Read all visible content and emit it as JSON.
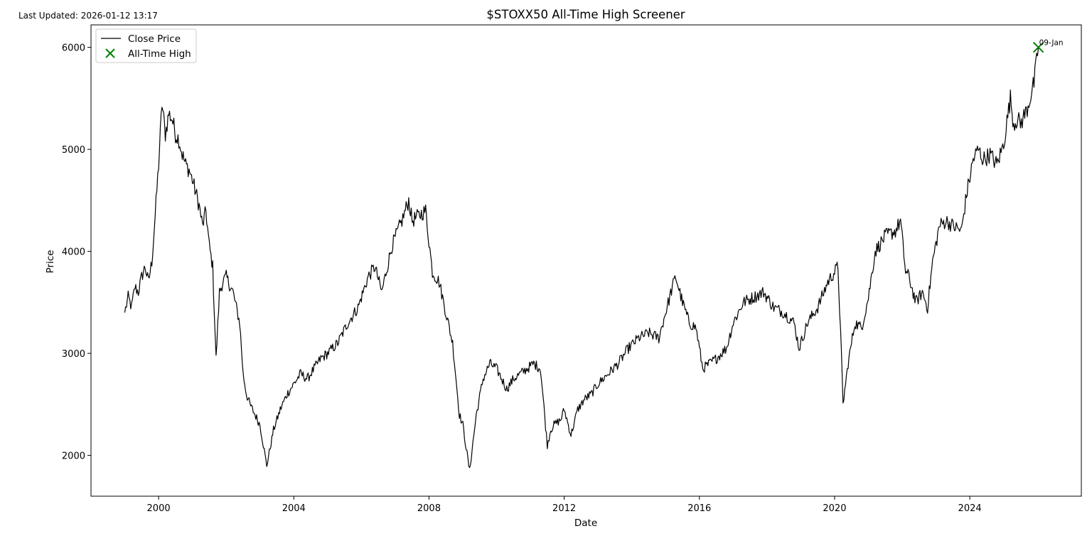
{
  "header": {
    "last_updated": "Last Updated: 2026-01-12 13:17"
  },
  "chart_data": {
    "type": "line",
    "title": "$STOXX50 All-Time High Screener",
    "xlabel": "Date",
    "ylabel": "Price",
    "xlim": [
      1998.0,
      2027.3
    ],
    "ylim": [
      1600,
      6220
    ],
    "x_ticks": [
      2000,
      2004,
      2008,
      2012,
      2016,
      2020,
      2024
    ],
    "x_tick_labels": [
      "2000",
      "2004",
      "2008",
      "2012",
      "2016",
      "2020",
      "2024"
    ],
    "y_ticks": [
      2000,
      3000,
      4000,
      5000,
      6000
    ],
    "y_tick_labels": [
      "2000",
      "3000",
      "4000",
      "5000",
      "6000"
    ],
    "grid": false,
    "legend_position": "top-left",
    "series": [
      {
        "name": "Close Price",
        "color": "#000000",
        "x": [
          1999.0,
          1999.1,
          1999.2,
          1999.3,
          1999.4,
          1999.5,
          1999.6,
          1999.7,
          1999.8,
          1999.9,
          2000.0,
          2000.1,
          2000.2,
          2000.3,
          2000.4,
          2000.5,
          2000.6,
          2000.7,
          2000.8,
          2000.9,
          2001.0,
          2001.2,
          2001.3,
          2001.4,
          2001.5,
          2001.6,
          2001.7,
          2001.8,
          2001.9,
          2002.0,
          2002.2,
          2002.4,
          2002.5,
          2002.6,
          2002.7,
          2003.0,
          2003.2,
          2003.4,
          2003.6,
          2003.8,
          2004.0,
          2004.2,
          2004.4,
          2004.6,
          2004.8,
          2005.0,
          2005.3,
          2005.6,
          2005.9,
          2006.2,
          2006.4,
          2006.6,
          2006.9,
          2007.2,
          2007.4,
          2007.5,
          2007.7,
          2007.9,
          2008.1,
          2008.3,
          2008.5,
          2008.7,
          2008.9,
          2009.0,
          2009.2,
          2009.4,
          2009.6,
          2009.8,
          2010.0,
          2010.3,
          2010.5,
          2010.7,
          2010.9,
          2011.1,
          2011.3,
          2011.5,
          2011.6,
          2011.7,
          2011.9,
          2012.0,
          2012.2,
          2012.4,
          2012.6,
          2012.8,
          2013.0,
          2013.3,
          2013.6,
          2013.9,
          2014.2,
          2014.5,
          2014.8,
          2015.0,
          2015.2,
          2015.3,
          2015.5,
          2015.7,
          2015.9,
          2016.1,
          2016.3,
          2016.5,
          2016.8,
          2017.0,
          2017.3,
          2017.6,
          2017.9,
          2018.2,
          2018.5,
          2018.8,
          2018.95,
          2019.2,
          2019.5,
          2019.8,
          2020.0,
          2020.1,
          2020.2,
          2020.25,
          2020.4,
          2020.6,
          2020.8,
          2021.0,
          2021.2,
          2021.5,
          2021.8,
          2021.95,
          2022.1,
          2022.2,
          2022.4,
          2022.6,
          2022.75,
          2022.9,
          2023.1,
          2023.3,
          2023.5,
          2023.75,
          2023.9,
          2024.1,
          2024.25,
          2024.4,
          2024.6,
          2024.8,
          2025.0,
          2025.2,
          2025.3,
          2025.4,
          2025.5,
          2025.7,
          2025.9,
          2026.03
        ],
        "y": [
          3400,
          3550,
          3450,
          3650,
          3600,
          3750,
          3850,
          3700,
          3900,
          4350,
          4850,
          5450,
          5150,
          5350,
          5300,
          5150,
          5100,
          4950,
          4850,
          4800,
          4700,
          4450,
          4250,
          4400,
          4050,
          3850,
          2950,
          3600,
          3700,
          3750,
          3600,
          3300,
          2800,
          2600,
          2500,
          2300,
          1900,
          2250,
          2450,
          2600,
          2700,
          2800,
          2750,
          2850,
          2950,
          3000,
          3100,
          3300,
          3450,
          3750,
          3850,
          3600,
          4050,
          4300,
          4500,
          4300,
          4350,
          4400,
          3800,
          3700,
          3400,
          3100,
          2400,
          2300,
          1850,
          2400,
          2750,
          2900,
          2850,
          2650,
          2750,
          2800,
          2850,
          2900,
          2850,
          2100,
          2250,
          2300,
          2350,
          2450,
          2200,
          2450,
          2550,
          2600,
          2700,
          2800,
          2900,
          3050,
          3150,
          3200,
          3150,
          3400,
          3650,
          3750,
          3500,
          3300,
          3250,
          2850,
          2900,
          2950,
          3050,
          3300,
          3500,
          3550,
          3600,
          3450,
          3400,
          3300,
          3050,
          3300,
          3450,
          3700,
          3800,
          3850,
          3000,
          2500,
          2900,
          3300,
          3250,
          3550,
          4000,
          4150,
          4200,
          4300,
          3800,
          3750,
          3500,
          3600,
          3450,
          3900,
          4250,
          4300,
          4250,
          4200,
          4550,
          4900,
          5000,
          4900,
          4950,
          4850,
          5050,
          5500,
          5250,
          5300,
          5250,
          5400,
          5650,
          6000
        ]
      }
    ],
    "all_time_high": {
      "name": "All-Time High",
      "x": 2026.03,
      "y": 6000,
      "label": "09-Jan",
      "color": "#008000"
    }
  }
}
